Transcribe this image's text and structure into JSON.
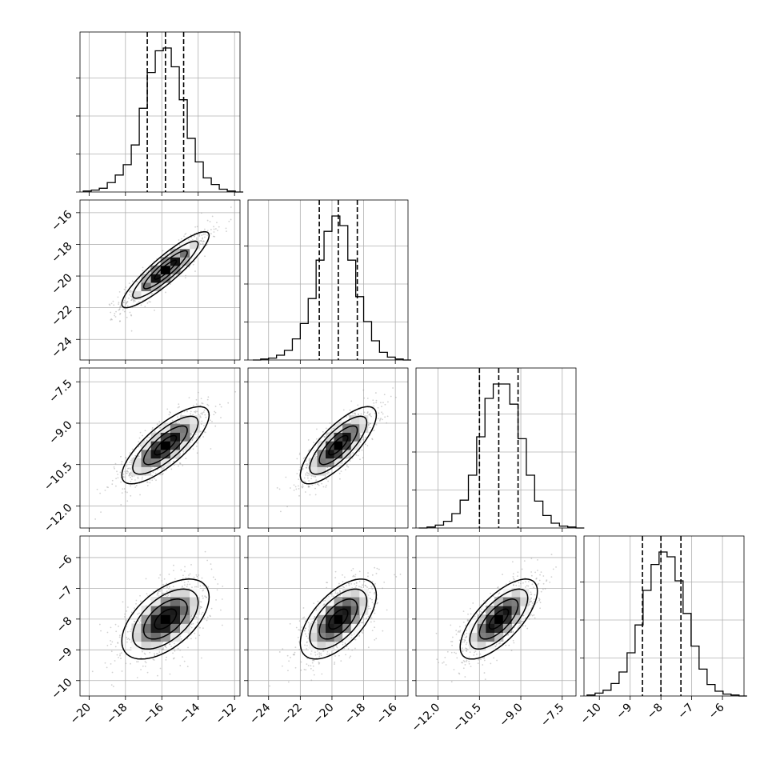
{
  "chart_data": {
    "type": "corner",
    "title": "",
    "grid": true,
    "parameters": [
      {
        "name": "",
        "mean": -15.8,
        "sd": 1.2,
        "q16": -16.8,
        "q50": -15.8,
        "q84": -14.8,
        "range": [
          -20.5,
          -11.7
        ],
        "ticks": [
          -20,
          -18,
          -16,
          -14,
          -12
        ],
        "tick_labels": [
          "−20",
          "−18",
          "−16",
          "−14",
          "−12"
        ],
        "hist_bins": [
          -20.32,
          -19.88,
          -19.44,
          -19.0,
          -18.56,
          -18.12,
          -17.68,
          -17.24,
          -16.8,
          -16.36,
          -15.92,
          -15.48,
          -15.04,
          -14.6,
          -14.16,
          -13.72,
          -13.28,
          -12.84,
          -12.4,
          -11.96
        ],
        "hist_counts": [
          1,
          2,
          4,
          10,
          18,
          29,
          50,
          89,
          127,
          150,
          153,
          133,
          98,
          57,
          32,
          15,
          8,
          3,
          1,
          0
        ]
      },
      {
        "name": "",
        "mean": -19.6,
        "sd": 1.2,
        "q16": -20.8,
        "q50": -19.6,
        "q84": -18.4,
        "range": [
          -25.3,
          -15.2
        ],
        "ticks": [
          -24,
          -22,
          -20,
          -18,
          -16
        ],
        "tick_labels": [
          "−24",
          "−22",
          "−20",
          "−18",
          "−16"
        ],
        "hist_bins": [
          -25.0,
          -24.5,
          -24.0,
          -23.5,
          -23.0,
          -22.5,
          -22.0,
          -21.5,
          -21.0,
          -20.5,
          -20.0,
          -19.5,
          -19.0,
          -18.5,
          -18.0,
          -17.5,
          -17.0,
          -16.5,
          -16.0,
          -15.5
        ],
        "hist_counts": [
          0,
          1,
          2,
          5,
          10,
          22,
          38,
          64,
          104,
          134,
          150,
          140,
          104,
          66,
          40,
          20,
          8,
          3,
          1,
          0
        ]
      },
      {
        "name": "",
        "mean": -9.8,
        "sd": 0.7,
        "q16": -10.5,
        "q50": -9.8,
        "q84": -9.1,
        "range": [
          -12.8,
          -7.0
        ],
        "ticks": [
          -12.0,
          -10.5,
          -9.0,
          -7.5
        ],
        "tick_labels": [
          "−12.0",
          "−10.5",
          "−9.0",
          "−7.5"
        ],
        "hist_bins": [
          -12.7,
          -12.4,
          -12.1,
          -11.8,
          -11.5,
          -11.2,
          -10.9,
          -10.6,
          -10.3,
          -10.0,
          -9.7,
          -9.4,
          -9.1,
          -8.8,
          -8.5,
          -8.2,
          -7.9,
          -7.6,
          -7.3,
          -7.0
        ],
        "hist_counts": [
          0,
          1,
          3,
          7,
          15,
          29,
          55,
          95,
          135,
          150,
          150,
          129,
          93,
          55,
          28,
          13,
          5,
          2,
          1,
          0
        ]
      },
      {
        "name": "",
        "mean": -8.0,
        "sd": 0.65,
        "q16": -8.6,
        "q50": -8.0,
        "q84": -7.35,
        "range": [
          -10.5,
          -5.3
        ],
        "ticks": [
          -10,
          -9,
          -8,
          -7,
          -6
        ],
        "tick_labels": [
          "−10",
          "−9",
          "−8",
          "−7",
          "−6"
        ],
        "hist_bins": [
          -10.4,
          -10.14,
          -9.88,
          -9.62,
          -9.36,
          -9.1,
          -8.84,
          -8.58,
          -8.32,
          -8.06,
          -7.8,
          -7.54,
          -7.28,
          -7.02,
          -6.76,
          -6.5,
          -6.24,
          -5.98,
          -5.72,
          -5.46
        ],
        "hist_counts": [
          1,
          3,
          6,
          13,
          25,
          45,
          74,
          110,
          137,
          150,
          145,
          120,
          86,
          52,
          28,
          12,
          5,
          2,
          1,
          0
        ]
      }
    ],
    "correlations": {
      "1-0": 0.9,
      "2-0": 0.78,
      "2-1": 0.78,
      "3-0": 0.55,
      "3-1": 0.6,
      "3-2": 0.7
    },
    "contour_levels_sigma": [
      0.5,
      1.0,
      1.5,
      2.0
    ],
    "quantiles": [
      0.16,
      0.5,
      0.84
    ]
  }
}
